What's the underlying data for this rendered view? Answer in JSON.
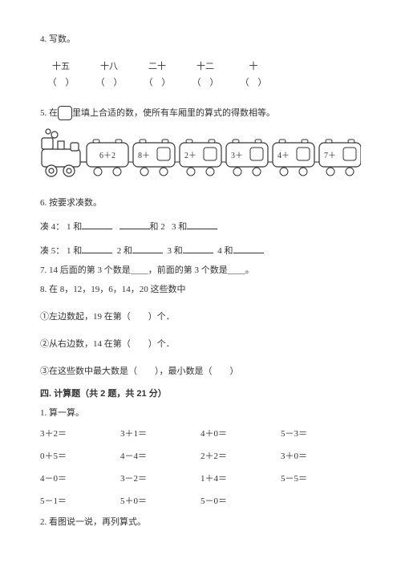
{
  "q4": {
    "title": "4. 写数。",
    "items": [
      {
        "cn": "十五",
        "paren": "（　）"
      },
      {
        "cn": "十八",
        "paren": "（　）"
      },
      {
        "cn": "二十",
        "paren": "（　）"
      },
      {
        "cn": "十二",
        "paren": "（　）"
      },
      {
        "cn": "十",
        "paren": "（　）"
      }
    ]
  },
  "q5": {
    "prefix": "5. 在",
    "suffix": "里填上合适的数，使所有车厢里的算式的得数相等。",
    "train": {
      "carriages": [
        "6＋2",
        "8＋",
        "2＋",
        "3＋",
        "4＋",
        "7＋"
      ],
      "stroke": "#333333",
      "fill": "#ffffff",
      "box_stroke": "#333333"
    }
  },
  "q6": {
    "title": "6. 按要求凑数。",
    "line1": {
      "label": "凑 4：",
      "a": "1 和",
      "b": "和 2",
      "c": "3 和"
    },
    "line2": {
      "label": "凑 5：",
      "a": "1 和",
      "b": "2 和",
      "c": "3 和",
      "d": "4 和"
    }
  },
  "q7": {
    "text": "7. 14 后面的第 3 个数是____，前面的第 3 个数是____。"
  },
  "q8": {
    "title": "8. 在 8，12，19，6，14，20 这些数中",
    "line1": "①左边数起，19 在第（　　）个．",
    "line2": "②从右边数，14 在第（　　）个．",
    "line3": "③在这些数中最大数是（　　），最小数是（　　）"
  },
  "section4": {
    "title": "四. 计算题（共 2 题，共 21 分）",
    "q1_title": "1. 算一算。",
    "calc": [
      "3＋2＝",
      "3＋1＝",
      "4＋0＝",
      "5－3＝",
      "0＋5＝",
      "4－4＝",
      "2＋2＝",
      "3＋0＝",
      "4－0＝",
      "3－2＝",
      "1＋4＝",
      "5－5＝",
      "5－1＝",
      "5＋0＝",
      "5－0＝",
      ""
    ],
    "q2_title": "2. 看图说一说，再列算式。"
  }
}
